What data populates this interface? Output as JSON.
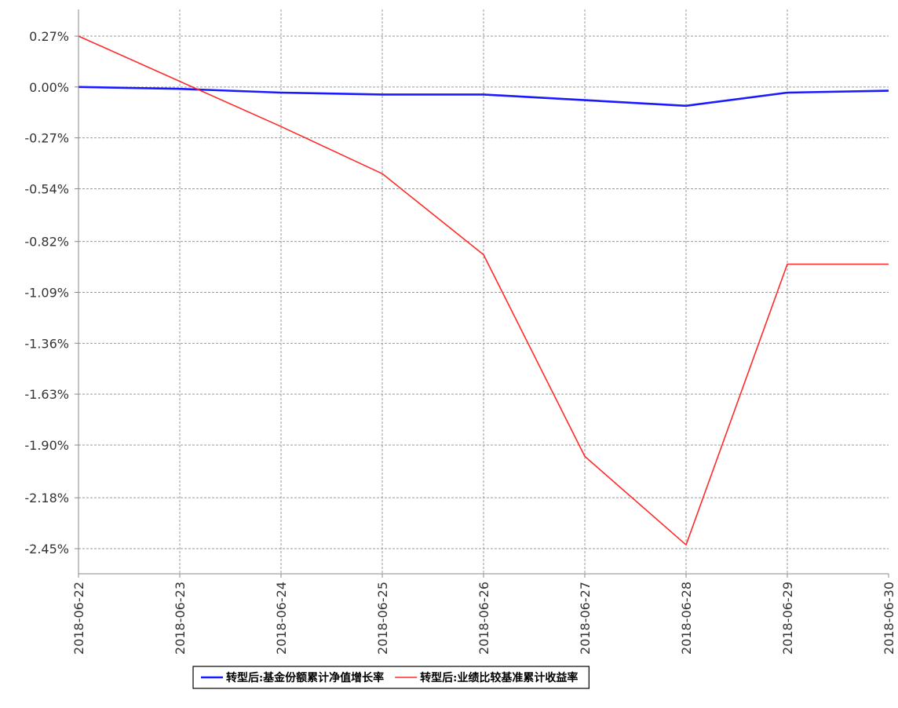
{
  "chart_data": {
    "type": "line",
    "title": "",
    "xlabel": "",
    "ylabel": "",
    "x": [
      "2018-06-22",
      "2018-06-23",
      "2018-06-24",
      "2018-06-25",
      "2018-06-26",
      "2018-06-27",
      "2018-06-28",
      "2018-06-29",
      "2018-06-30"
    ],
    "y_ticks": [
      0.27,
      0.0,
      -0.27,
      -0.54,
      -0.82,
      -1.09,
      -1.36,
      -1.63,
      -1.9,
      -2.18,
      -2.45
    ],
    "y_tick_labels": [
      "0.27%",
      "0.00%",
      "-0.27%",
      "-0.54%",
      "-0.82%",
      "-1.09%",
      "-1.36%",
      "-1.63%",
      "-1.90%",
      "-2.18%",
      "-2.45%"
    ],
    "ylim": [
      -2.58,
      0.33
    ],
    "grid": true,
    "legend_position": "bottom-center",
    "series": [
      {
        "name": "转型后:基金份额累计净值增长率",
        "color": "#1a1aff",
        "values": [
          0.0,
          -0.01,
          -0.03,
          -0.04,
          -0.04,
          -0.07,
          -0.1,
          -0.03,
          -0.02
        ]
      },
      {
        "name": "转型后:业绩比较基准累计收益率",
        "color": "#ff2a2a",
        "values": [
          0.27,
          0.03,
          -0.21,
          -0.46,
          -0.89,
          -1.96,
          -2.43,
          -0.94,
          -0.94
        ]
      }
    ]
  }
}
